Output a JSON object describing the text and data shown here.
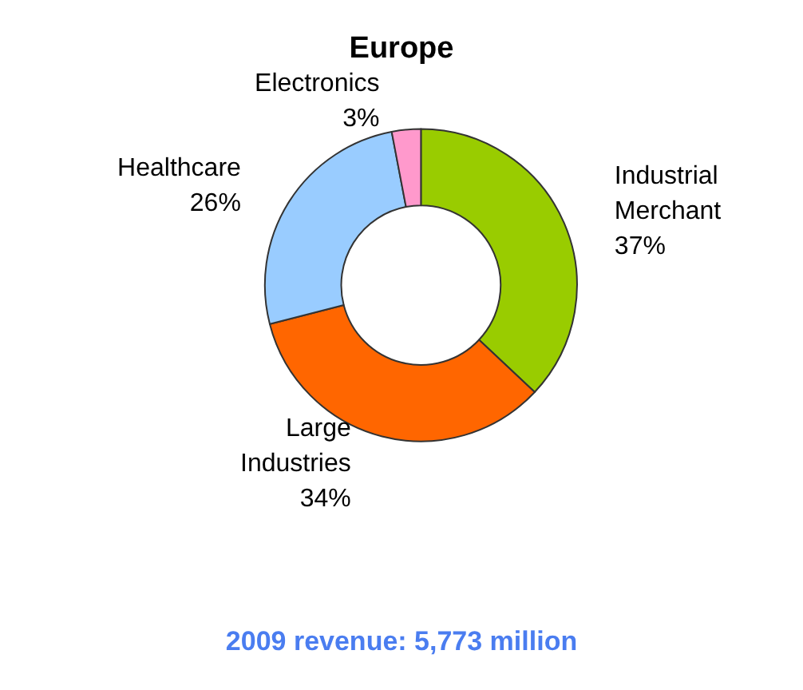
{
  "chart_data": {
    "type": "donut",
    "title": "Europe",
    "categories": [
      "Industrial Merchant",
      "Large Industries",
      "Healthcare",
      "Electronics"
    ],
    "values": [
      37,
      34,
      26,
      3
    ],
    "value_labels": [
      "37%",
      "34%",
      "26%",
      "3%"
    ],
    "colors": [
      "#99cc00",
      "#ff6600",
      "#99ccff",
      "#ff99cc"
    ],
    "annotations": [
      "2009 revenue: 5,773 million"
    ],
    "legend": false
  }
}
